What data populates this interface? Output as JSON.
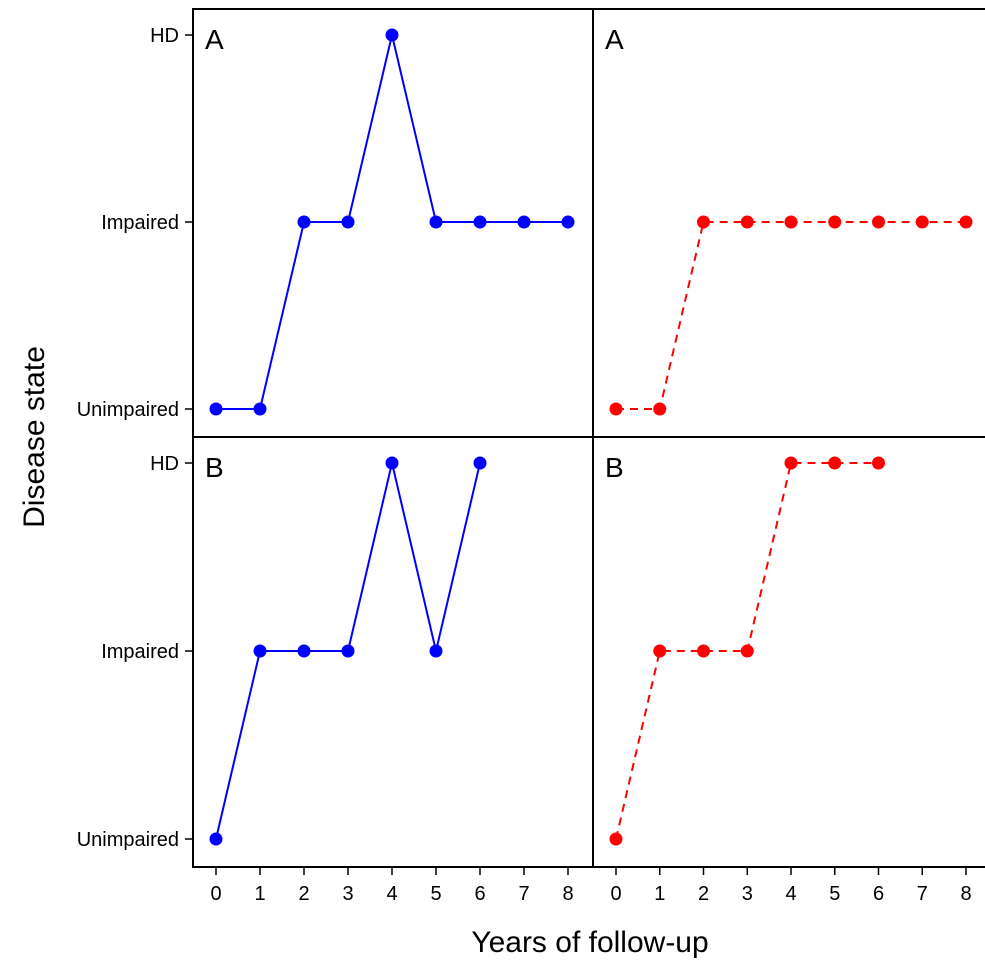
{
  "chart_data": {
    "type": "line",
    "xlabel": "Years of follow-up",
    "ylabel": "Disease state",
    "x_ticks": [
      0,
      1,
      2,
      3,
      4,
      5,
      6,
      7,
      8
    ],
    "xlim": [
      0,
      8
    ],
    "y_categories": [
      "Unimpaired",
      "Impaired",
      "HD"
    ],
    "colors": {
      "observed": "#0000ff",
      "latent": "#ff0000"
    },
    "panels": [
      {
        "label": "A",
        "row": 0,
        "col": 0,
        "style": "solid",
        "color": "#0000ff",
        "x": [
          0,
          1,
          2,
          3,
          4,
          5,
          6,
          7,
          8
        ],
        "y": [
          "Unimpaired",
          "Unimpaired",
          "Impaired",
          "Impaired",
          "HD",
          "Impaired",
          "Impaired",
          "Impaired",
          "Impaired"
        ]
      },
      {
        "label": "A",
        "row": 0,
        "col": 1,
        "style": "dashed",
        "color": "#ff0000",
        "x": [
          0,
          1,
          2,
          3,
          4,
          5,
          6,
          7,
          8
        ],
        "y": [
          "Unimpaired",
          "Unimpaired",
          "Impaired",
          "Impaired",
          "Impaired",
          "Impaired",
          "Impaired",
          "Impaired",
          "Impaired"
        ]
      },
      {
        "label": "B",
        "row": 1,
        "col": 0,
        "style": "solid",
        "color": "#0000ff",
        "x": [
          0,
          1,
          2,
          3,
          4,
          5,
          6
        ],
        "y": [
          "Unimpaired",
          "Impaired",
          "Impaired",
          "Impaired",
          "HD",
          "Impaired",
          "HD"
        ]
      },
      {
        "label": "B",
        "row": 1,
        "col": 1,
        "style": "dashed",
        "color": "#ff0000",
        "x": [
          0,
          1,
          2,
          3,
          4,
          5,
          6
        ],
        "y": [
          "Unimpaired",
          "Impaired",
          "Impaired",
          "Impaired",
          "HD",
          "HD",
          "HD"
        ]
      }
    ]
  }
}
